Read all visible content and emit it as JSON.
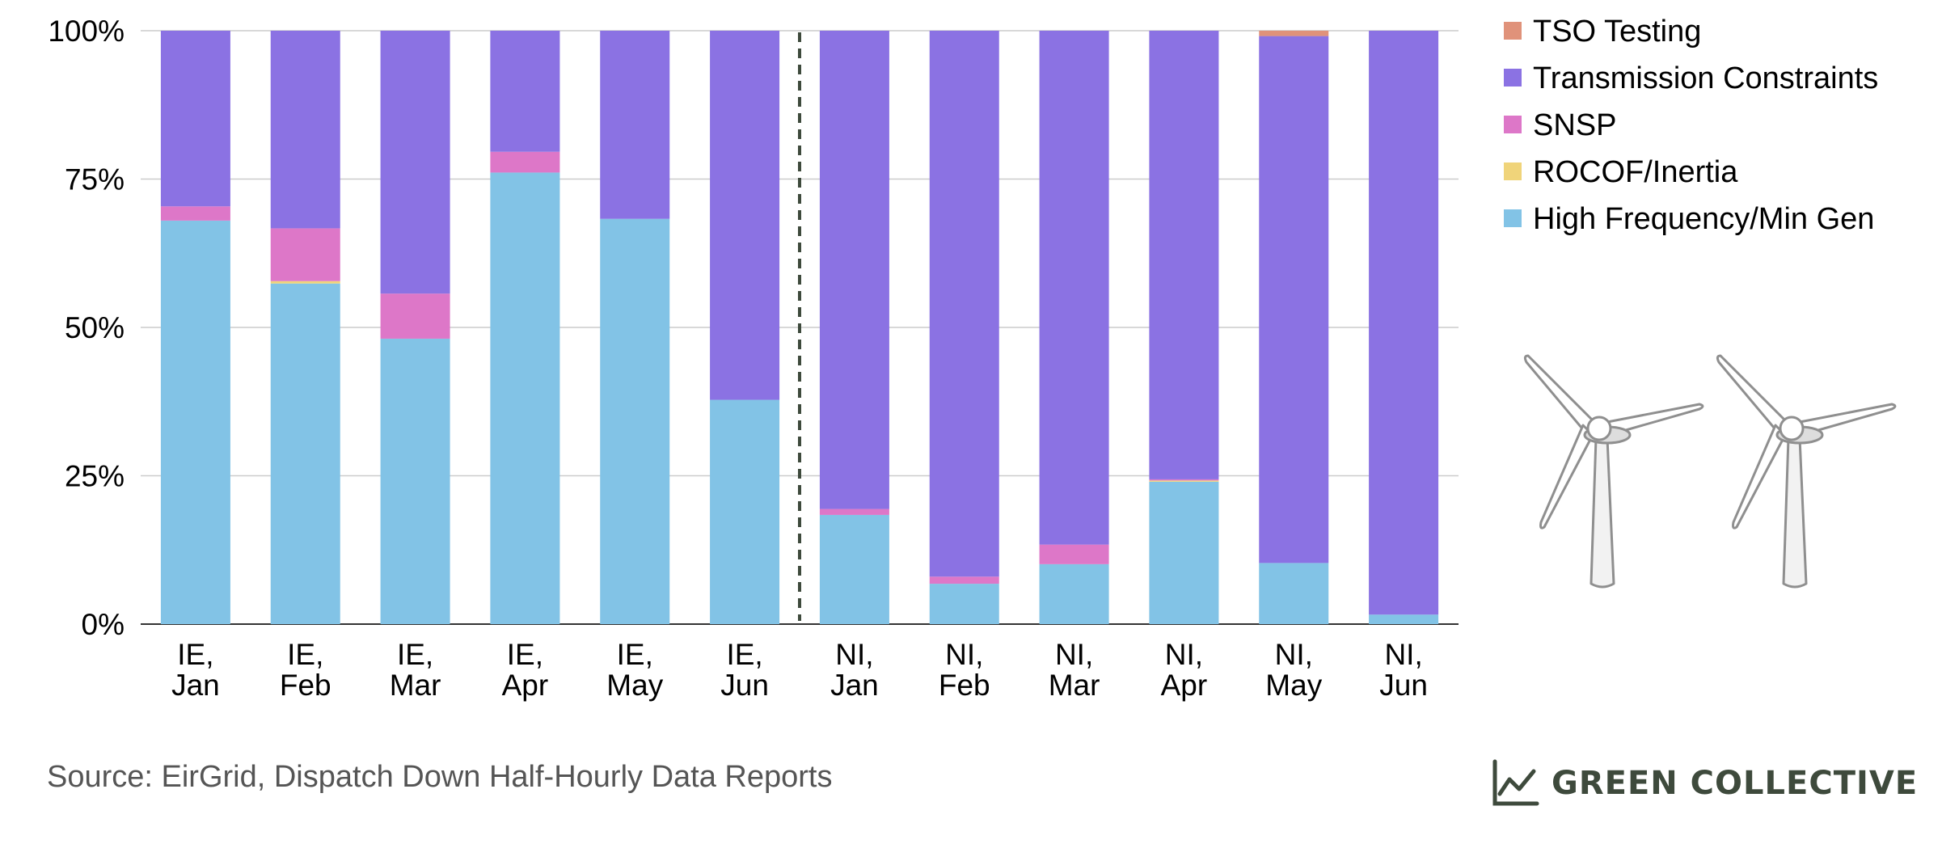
{
  "chart_data": {
    "type": "bar",
    "stacked": true,
    "percent": true,
    "categories": [
      "IE,\nJan",
      "IE,\nFeb",
      "IE,\nMar",
      "IE,\nApr",
      "IE,\nMay",
      "IE,\nJun",
      "NI,\nJan",
      "NI,\nFeb",
      "NI,\nMar",
      "NI,\nApr",
      "NI,\nMay",
      "NI,\nJun"
    ],
    "series": [
      {
        "name": "High Frequency/Min Gen",
        "color": "#82c3e6",
        "values": [
          68,
          57.4,
          48.1,
          76.1,
          68.3,
          37.8,
          18.4,
          6.8,
          10.1,
          24.0,
          10.3,
          1.6
        ]
      },
      {
        "name": "ROCOF/Inertia",
        "color": "#f0d47a",
        "values": [
          0,
          0.4,
          0,
          0,
          0,
          0,
          0,
          0,
          0,
          0.2,
          0,
          0
        ]
      },
      {
        "name": "SNSP",
        "color": "#dd77c8",
        "values": [
          2.4,
          8.9,
          7.6,
          3.5,
          0,
          0,
          1.0,
          1.2,
          3.3,
          0.2,
          0,
          0
        ]
      },
      {
        "name": "Transmission Constraints",
        "color": "#8b72e3",
        "values": [
          29.6,
          33.3,
          44.3,
          20.4,
          31.7,
          62.2,
          80.6,
          92.0,
          86.6,
          75.6,
          88.8,
          98.4
        ]
      },
      {
        "name": "TSO Testing",
        "color": "#e0927a",
        "values": [
          0,
          0,
          0,
          0,
          0,
          0,
          0,
          0,
          0,
          0,
          0.9,
          0
        ]
      }
    ],
    "ylim": [
      0,
      100
    ],
    "yticks": [
      "0%",
      "25%",
      "50%",
      "75%",
      "100%"
    ],
    "divider_after_category_index": 5,
    "legend_position": "right-top",
    "grid": true
  },
  "footer": {
    "source": "Source: EirGrid, Dispatch Down Half-Hourly Data Reports",
    "brand": "GREEN COLLECTIVE"
  },
  "icons": {
    "brand_logo": "line-chart-icon",
    "illustration": "wind-turbine-icon"
  }
}
